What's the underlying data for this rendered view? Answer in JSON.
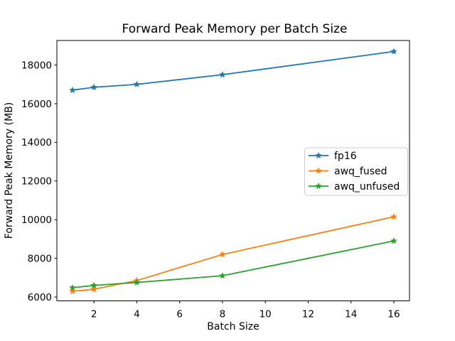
{
  "chart_data": {
    "type": "line",
    "title": "Forward Peak Memory per Batch Size",
    "xlabel": "Batch Size",
    "ylabel": "Forward Peak Memory (MB)",
    "x": [
      1,
      2,
      4,
      8,
      16
    ],
    "series": [
      {
        "name": "fp16",
        "color": "#1f77b4",
        "values": [
          16700,
          16850,
          17000,
          17500,
          18700
        ]
      },
      {
        "name": "awq_fused",
        "color": "#ff7f0e",
        "values": [
          6300,
          6400,
          6850,
          8200,
          10150
        ]
      },
      {
        "name": "awq_unfused",
        "color": "#2ca02c",
        "values": [
          6480,
          6600,
          6750,
          7100,
          8900
        ]
      }
    ],
    "marker": "star",
    "xticks": [
      2,
      4,
      6,
      8,
      10,
      12,
      14,
      16
    ],
    "yticks": [
      6000,
      8000,
      10000,
      12000,
      14000,
      16000,
      18000
    ],
    "xlim": [
      0.27,
      16.73
    ],
    "ylim": [
      5800,
      19270
    ],
    "grid": false,
    "legend": {
      "position": "center-right"
    },
    "colors": {
      "background": "#ffffff",
      "frame": "#000000",
      "text": "#000000",
      "legend_border": "#cccccc",
      "legend_background": "#ffffff"
    }
  }
}
